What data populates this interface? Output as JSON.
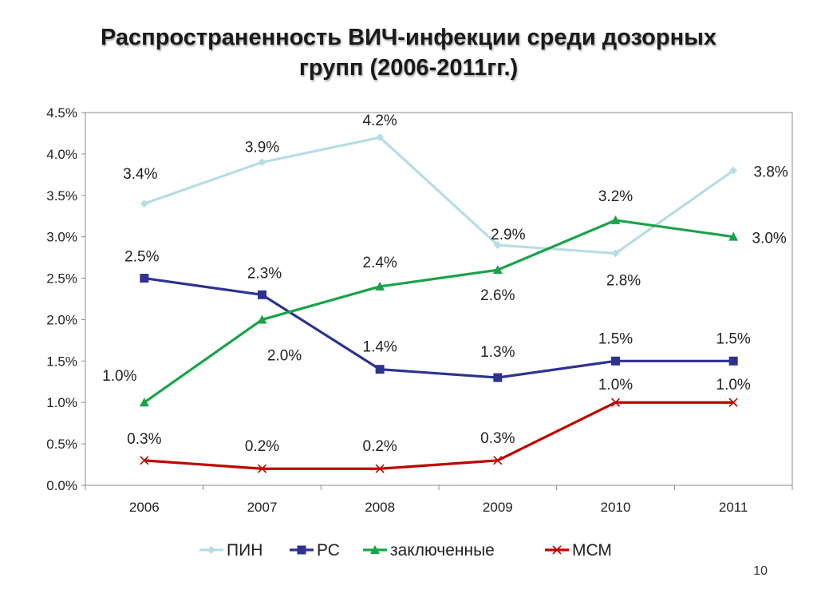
{
  "slide": {
    "title_line1": "Распространенность ВИЧ-инфекции среди дозорных",
    "title_line2": "групп (2006-2011гг.)",
    "page_number": "10"
  },
  "chart_data": {
    "type": "line",
    "categories": [
      "2006",
      "2007",
      "2008",
      "2009",
      "2010",
      "2011"
    ],
    "ylim": [
      0,
      4.5
    ],
    "yticks": [
      "0.0%",
      "0.5%",
      "1.0%",
      "1.5%",
      "2.0%",
      "2.5%",
      "3.0%",
      "3.5%",
      "4.0%",
      "4.5%"
    ],
    "grid": false,
    "legend_position": "bottom",
    "series": [
      {
        "name": "ПИН",
        "color": "#b6dde4",
        "marker": "diamond",
        "values": [
          3.4,
          3.9,
          4.2,
          2.9,
          2.8,
          3.8
        ],
        "labels": [
          "3.4%",
          "3.9%",
          "4.2%",
          "2.9%",
          "2.8%",
          "3.8%"
        ]
      },
      {
        "name": "РС",
        "color": "#2e3192",
        "marker": "square",
        "values": [
          2.5,
          2.3,
          1.4,
          1.3,
          1.5,
          1.5
        ],
        "labels": [
          "2.5%",
          "2.3%",
          "1.4%",
          "1.3%",
          "1.5%",
          "1.5%"
        ]
      },
      {
        "name": "заключенные",
        "color": "#1aa24a",
        "marker": "triangle",
        "values": [
          1.0,
          2.0,
          2.4,
          2.6,
          3.2,
          3.0
        ],
        "labels": [
          "1.0%",
          "2.0%",
          "2.4%",
          "2.6%",
          "3.2%",
          "3.0%"
        ]
      },
      {
        "name": "МСМ",
        "color": "#c00000",
        "marker": "x",
        "values": [
          0.3,
          0.2,
          0.2,
          0.3,
          1.0,
          1.0
        ],
        "labels": [
          "0.3%",
          "0.2%",
          "0.2%",
          "0.3%",
          "1.0%",
          "1.0%"
        ]
      }
    ]
  }
}
